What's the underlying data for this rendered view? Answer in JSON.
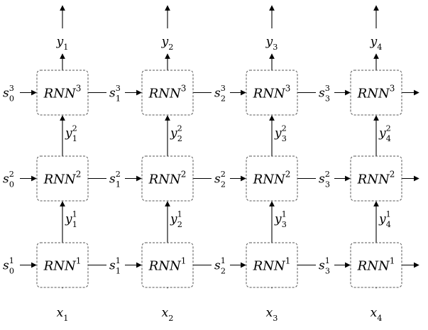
{
  "diagram": {
    "layers": [
      {
        "block": {
          "name": "RNN",
          "sup": "3"
        },
        "inputs": [
          {
            "name": "y",
            "sub": "1",
            "sup": "2"
          },
          {
            "name": "y",
            "sub": "2",
            "sup": "2"
          },
          {
            "name": "y",
            "sub": "3",
            "sup": "2"
          },
          {
            "name": "y",
            "sub": "4",
            "sup": "2"
          }
        ],
        "states": [
          {
            "name": "s",
            "sub": "0",
            "sup": "3"
          },
          {
            "name": "s",
            "sub": "1",
            "sup": "3"
          },
          {
            "name": "s",
            "sub": "2",
            "sup": "3"
          },
          {
            "name": "s",
            "sub": "3",
            "sup": "3"
          }
        ]
      },
      {
        "block": {
          "name": "RNN",
          "sup": "2"
        },
        "inputs": [
          {
            "name": "y",
            "sub": "1",
            "sup": "1"
          },
          {
            "name": "y",
            "sub": "2",
            "sup": "1"
          },
          {
            "name": "y",
            "sub": "3",
            "sup": "1"
          },
          {
            "name": "y",
            "sub": "4",
            "sup": "1"
          }
        ],
        "states": [
          {
            "name": "s",
            "sub": "0",
            "sup": "2"
          },
          {
            "name": "s",
            "sub": "1",
            "sup": "2"
          },
          {
            "name": "s",
            "sub": "2",
            "sup": "2"
          },
          {
            "name": "s",
            "sub": "3",
            "sup": "2"
          }
        ]
      },
      {
        "block": {
          "name": "RNN",
          "sup": "1"
        },
        "inputs": [
          {
            "name": "x",
            "sub": "1",
            "sup": ""
          },
          {
            "name": "x",
            "sub": "2",
            "sup": ""
          },
          {
            "name": "x",
            "sub": "3",
            "sup": ""
          },
          {
            "name": "x",
            "sub": "4",
            "sup": ""
          }
        ],
        "states": [
          {
            "name": "s",
            "sub": "0",
            "sup": "1"
          },
          {
            "name": "s",
            "sub": "1",
            "sup": "1"
          },
          {
            "name": "s",
            "sub": "2",
            "sup": "1"
          },
          {
            "name": "s",
            "sub": "3",
            "sup": "1"
          }
        ]
      }
    ],
    "outputs": [
      {
        "name": "y",
        "sub": "1",
        "sup": ""
      },
      {
        "name": "y",
        "sub": "2",
        "sup": ""
      },
      {
        "name": "y",
        "sub": "3",
        "sup": ""
      },
      {
        "name": "y",
        "sub": "4",
        "sup": ""
      }
    ]
  }
}
